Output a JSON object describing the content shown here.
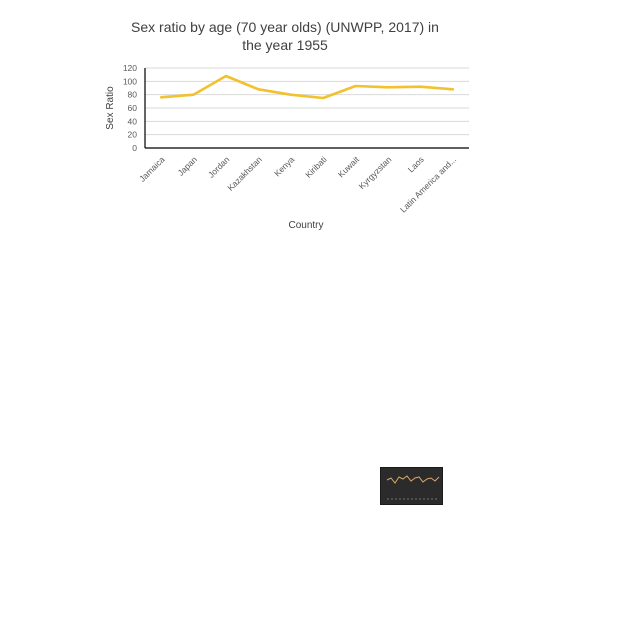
{
  "chart_data": {
    "type": "line",
    "title_lines": [
      "Sex ratio by age (70 year olds) (UNWPP, 2017) in",
      "the year 1955"
    ],
    "xlabel": "Country",
    "ylabel": "Sex Ratio",
    "categories": [
      "Jamaica",
      "Japan",
      "Jordan",
      "Kazakhstan",
      "Kenya",
      "Kiribati",
      "Kuwait",
      "Kyrgyzstan",
      "Laos",
      "Latin America and..."
    ],
    "series": [
      {
        "values": [
          76,
          80,
          108,
          88,
          80,
          75,
          93,
          91,
          92,
          88
        ]
      }
    ],
    "ylim": [
      0,
      120
    ],
    "yticks": [
      0,
      20,
      40,
      60,
      80,
      100,
      120
    ],
    "grid": true,
    "colors": {
      "series": "#F2C12E"
    }
  },
  "thumbnail": {
    "colors": {
      "background": "#2b2b2b",
      "line": "#d9a86a",
      "dashed": "#8a8a8a"
    }
  }
}
